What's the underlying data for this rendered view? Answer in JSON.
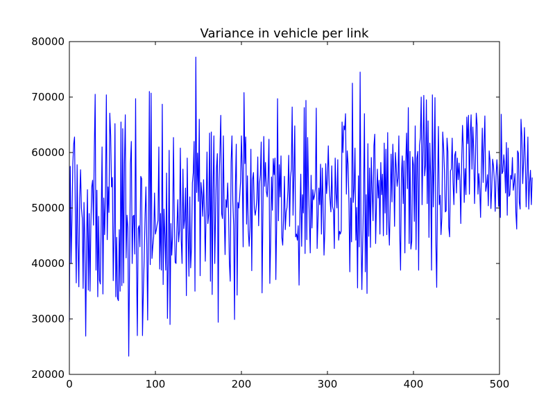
{
  "chart_data": {
    "type": "line",
    "title": "Variance in vehicle per link",
    "xlabel": "",
    "ylabel": "",
    "xlim": [
      0,
      500
    ],
    "ylim": [
      20000,
      80000
    ],
    "x_ticks": [
      0,
      100,
      200,
      300,
      400,
      500
    ],
    "y_ticks": [
      20000,
      30000,
      40000,
      50000,
      60000,
      70000,
      80000
    ],
    "x_tick_labels": [
      "0",
      "100",
      "200",
      "300",
      "400",
      "500"
    ],
    "y_tick_labels": [
      "20000",
      "30000",
      "40000",
      "50000",
      "60000",
      "70000",
      "80000"
    ],
    "grid": false,
    "line_color": "#0000ff",
    "series": [
      {
        "x_start": 0,
        "x_step": 1,
        "values": [
          29500,
          57500,
          40000,
          48000,
          58000,
          61500,
          62800,
          48000,
          36500,
          57800,
          43600,
          35800,
          51800,
          56900,
          50000,
          48200,
          35500,
          51000,
          43800,
          26900,
          43500,
          53300,
          35200,
          49000,
          35000,
          47000,
          53800,
          55000,
          46900,
          60700,
          70500,
          38800,
          53200,
          34000,
          48500,
          37000,
          36300,
          47800,
          61000,
          34500,
          51800,
          45200,
          52900,
          70400,
          44300,
          53800,
          49200,
          67100,
          63200,
          53800,
          55500,
          36900,
          45600,
          65200,
          34000,
          44700,
          33700,
          33300,
          46100,
          35000,
          65500,
          36000,
          64300,
          36500,
          58000,
          66800,
          41000,
          48700,
          46500,
          23300,
          40000,
          58000,
          62000,
          40000,
          48500,
          48700,
          41700,
          69700,
          41000,
          27000,
          46300,
          46800,
          43000,
          55700,
          55300,
          27000,
          35000,
          41000,
          48700,
          53800,
          43500,
          29800,
          47700,
          71000,
          39800,
          70700,
          40900,
          43100,
          44800,
          52700,
          45300,
          46000,
          47000,
          47700,
          61000,
          39000,
          49000,
          38800,
          68700,
          36200,
          49800,
          45000,
          38800,
          56300,
          30100,
          40000,
          60400,
          29000,
          47200,
          41500,
          44900,
          62700,
          48000,
          40200,
          40000,
          46200,
          51500,
          43900,
          46000,
          60800,
          44400,
          40000,
          57000,
          46300,
          48000,
          53600,
          34200,
          59000,
          46200,
          37700,
          52000,
          39200,
          43000,
          54500,
          56300,
          62000,
          35000,
          77200,
          52800,
          59900,
          51200,
          66000,
          37800,
          54600,
          52500,
          48500,
          55100,
          49100,
          40400,
          50000,
          60100,
          47200,
          48900,
          63500,
          36800,
          63700,
          34400,
          53000,
          63000,
          40000,
          49300,
          57200,
          59800,
          29400,
          54800,
          60100,
          66700,
          49000,
          48100,
          63000,
          48800,
          41600,
          51500,
          50100,
          54500,
          49500,
          40100,
          36800,
          58300,
          63000,
          51300,
          46900,
          29900,
          54000,
          61500,
          34300,
          51000,
          50000,
          52200,
          54800,
          63000,
          56500,
          43000,
          70800,
          58000,
          62800,
          47100,
          55800,
          45900,
          43100,
          46600,
          60600,
          38700,
          55100,
          56400,
          50000,
          48700,
          49800,
          51700,
          59200,
          46800,
          54300,
          56000,
          61900,
          34700,
          49200,
          62900,
          53900,
          58200,
          53000,
          52000,
          55600,
          62400,
          36400,
          44000,
          55600,
          49600,
          58900,
          56000,
          59000,
          37100,
          47500,
          69700,
          47700,
          57800,
          52000,
          59400,
          44700,
          43300,
          48300,
          55700,
          46100,
          49300,
          50100,
          53100,
          59500,
          46700,
          55500,
          57000,
          68200,
          48700,
          56000,
          64800,
          44800,
          45300,
          44200,
          46800,
          36100,
          48800,
          56100,
          43100,
          52400,
          49100,
          68100,
          41800,
          69400,
          44300,
          62700,
          53700,
          47800,
          41900,
          55900,
          46400,
          53300,
          51500,
          52200,
          53500,
          68000,
          42700,
          47700,
          53600,
          50600,
          57900,
          45300,
          57200,
          50600,
          41500,
          46100,
          58000,
          52600,
          55200,
          61200,
          54100,
          51500,
          49300,
          57600,
          50200,
          49600,
          42700,
          59000,
          52600,
          50000,
          58700,
          44200,
          45800,
          45300,
          45900,
          65500,
          60000,
          64800,
          64100,
          67000,
          52500,
          60300,
          57800,
          50800,
          38500,
          51800,
          43900,
          72500,
          51000,
          53400,
          60800,
          44200,
          50100,
          35600,
          55800,
          43000,
          74500,
          46000,
          35300,
          43900,
          52400,
          67000,
          38500,
          52400,
          34600,
          61600,
          44900,
          57200,
          42900,
          59100,
          52800,
          47700,
          61200,
          63300,
          43600,
          50600,
          57000,
          51800,
          55000,
          45300,
          58200,
          52400,
          56100,
          45000,
          61700,
          49100,
          60600,
          45200,
          63600,
          47800,
          43300,
          51000,
          59700,
          51100,
          61500,
          56500,
          46700,
          60000,
          57200,
          53900,
          55400,
          63000,
          45500,
          38800,
          56100,
          59400,
          50800,
          58500,
          41900,
          58000,
          63500,
          53500,
          68100,
          43600,
          60200,
          42600,
          44000,
          59200,
          57700,
          47600,
          64800,
          42500,
          58900,
          60200,
          38800,
          61300,
          62700,
          70000,
          50600,
          60400,
          70300,
          55800,
          57700,
          69500,
          50800,
          65700,
          44700,
          61700,
          55500,
          38800,
          70400,
          50200,
          57700,
          69900,
          44200,
          35700,
          53400,
          64700,
          50600,
          52300,
          45200,
          48300,
          63700,
          61000,
          56800,
          49300,
          49500,
          62600,
          60200,
          46600,
          44800,
          56700,
          57000,
          62600,
          54600,
          50600,
          59500,
          60200,
          52700,
          59000,
          55100,
          58100,
          54900,
          47200,
          58400,
          64900,
          60600,
          51000,
          57100,
          52400,
          66400,
          61600,
          66700,
          52500,
          63100,
          66800,
          57000,
          64600,
          60700,
          50800,
          58200,
          67100,
          64900,
          52500,
          56200,
          53600,
          48300,
          57100,
          64400,
          54600,
          61400,
          66600,
          53000,
          54100,
          56000,
          50400,
          60300,
          58600,
          49900,
          53600,
          58800,
          57600,
          54800,
          49400,
          55700,
          58700,
          55800,
          50300,
          57900,
          48300,
          66900,
          56200,
          56600,
          59600,
          57500,
          52700,
          61800,
          48700,
          60800,
          52100,
          52400,
          55900,
          55200,
          59100,
          53200,
          54500,
          56200,
          49300,
          46200,
          60300,
          59900,
          51000,
          49800,
          66000,
          62900,
          54400,
          58500,
          64500,
          58000,
          50200,
          56300,
          62800,
          49800,
          54600,
          56800,
          50600,
          55500
        ]
      }
    ]
  }
}
